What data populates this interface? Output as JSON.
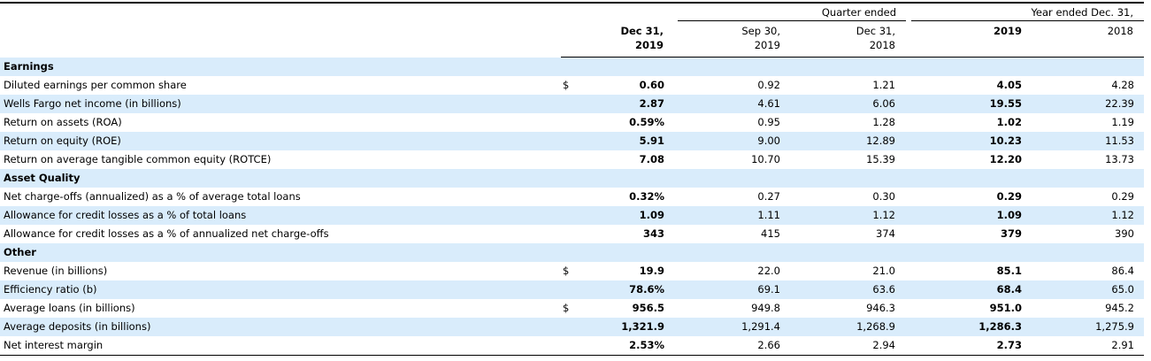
{
  "header": {
    "quarter_group": "Quarter ended",
    "year_group": "Year ended Dec. 31,",
    "columns": [
      {
        "line1": "Dec 31,",
        "line2": "2019",
        "bold": true
      },
      {
        "line1": "Sep 30,",
        "line2": "2019",
        "bold": false
      },
      {
        "line1": "Dec 31,",
        "line2": "2018",
        "bold": false
      },
      {
        "line1": "",
        "line2": "2019",
        "bold": true
      },
      {
        "line1": "",
        "line2": "2018",
        "bold": false
      }
    ]
  },
  "rows": [
    {
      "type": "section",
      "label": "Earnings"
    },
    {
      "type": "data",
      "label": "Diluted earnings per common share",
      "dollar": "$",
      "values": [
        "0.60",
        "0.92",
        "1.21",
        "4.05",
        "4.28"
      ]
    },
    {
      "type": "data",
      "label": "Wells Fargo net income (in billions)",
      "dollar": "",
      "values": [
        "2.87",
        "4.61",
        "6.06",
        "19.55",
        "22.39"
      ]
    },
    {
      "type": "data",
      "label": "Return on assets (ROA)",
      "dollar": "",
      "values": [
        "0.59%",
        "0.95",
        "1.28",
        "1.02",
        "1.19"
      ]
    },
    {
      "type": "data",
      "label": "Return on equity (ROE)",
      "dollar": "",
      "values": [
        "5.91",
        "9.00",
        "12.89",
        "10.23",
        "11.53"
      ]
    },
    {
      "type": "data",
      "label": "Return on average tangible common equity (ROTCE)",
      "dollar": "",
      "values": [
        "7.08",
        "10.70",
        "15.39",
        "12.20",
        "13.73"
      ]
    },
    {
      "type": "section",
      "label": "Asset Quality"
    },
    {
      "type": "data",
      "label": "Net charge-offs (annualized) as a % of average total loans",
      "dollar": "",
      "values": [
        "0.32%",
        "0.27",
        "0.30",
        "0.29",
        "0.29"
      ]
    },
    {
      "type": "data",
      "label": "Allowance for credit losses as a % of total loans",
      "dollar": "",
      "values": [
        "1.09",
        "1.11",
        "1.12",
        "1.09",
        "1.12"
      ]
    },
    {
      "type": "data",
      "label": "Allowance for credit losses as a % of annualized net charge-offs",
      "dollar": "",
      "values": [
        "343",
        "415",
        "374",
        "379",
        "390"
      ]
    },
    {
      "type": "section",
      "label": "Other"
    },
    {
      "type": "data",
      "label": "Revenue (in billions)",
      "dollar": "$",
      "values": [
        "19.9",
        "22.0",
        "21.0",
        "85.1",
        "86.4"
      ]
    },
    {
      "type": "data",
      "label": "Efficiency ratio (b)",
      "dollar": "",
      "values": [
        "78.6%",
        "69.1",
        "63.6",
        "68.4",
        "65.0"
      ]
    },
    {
      "type": "data",
      "label": "Average loans (in billions)",
      "dollar": "$",
      "values": [
        "956.5",
        "949.8",
        "946.3",
        "951.0",
        "945.2"
      ]
    },
    {
      "type": "data",
      "label": "Average deposits (in billions)",
      "dollar": "",
      "values": [
        "1,321.9",
        "1,291.4",
        "1,268.9",
        "1,286.3",
        "1,275.9"
      ]
    },
    {
      "type": "data",
      "label": "Net interest margin",
      "dollar": "",
      "values": [
        "2.53%",
        "2.66",
        "2.94",
        "2.73",
        "2.91"
      ]
    }
  ],
  "colors": {
    "row_shade": "#d9ecfb",
    "rule": "#000000"
  }
}
